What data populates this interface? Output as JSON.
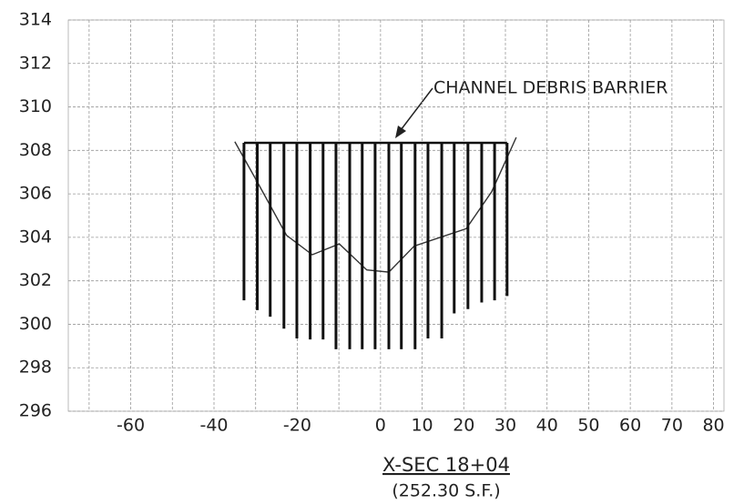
{
  "chart_data": {
    "type": "line",
    "title": "X-SEC 18+04",
    "subtitle": "(252.30 S.F.)",
    "annotation": "CHANNEL DEBRIS BARRIER",
    "xlim": [
      -75,
      82.5
    ],
    "ylim": [
      296,
      314
    ],
    "xticks": [
      -60,
      -40,
      -20,
      0,
      10,
      20,
      30,
      40,
      50,
      60,
      70,
      80
    ],
    "xgrid": [
      -70,
      -60,
      -50,
      -40,
      -30,
      -20,
      -10,
      0,
      10,
      20,
      30,
      40,
      50,
      60,
      70,
      80
    ],
    "yticks": [
      296,
      298,
      300,
      302,
      304,
      306,
      308,
      310,
      312,
      314
    ],
    "grid": true,
    "series": [
      {
        "color": "#333333",
        "x": [
          -35.0,
          -29.6,
          -22.6,
          -16.4,
          -9.9,
          -3.3,
          2.0,
          8.1,
          20.6,
          26.7,
          32.6
        ],
        "values": [
          308.4,
          306.55,
          304.1,
          303.2,
          303.7,
          302.5,
          302.4,
          303.6,
          304.4,
          306.1,
          308.6
        ]
      }
    ],
    "posts": {
      "color": "#111111",
      "top": 308.35,
      "x": [
        -32.8,
        -29.6,
        -26.5,
        -23.2,
        -20.1,
        -16.9,
        -13.8,
        -10.7,
        -7.4,
        -4.4,
        -1.3,
        2.0,
        5.0,
        8.3,
        11.4,
        14.7,
        17.7,
        21.0,
        24.3,
        27.4,
        30.4
      ],
      "bottom": [
        301.1,
        300.65,
        300.35,
        299.8,
        299.35,
        299.3,
        299.3,
        298.85,
        298.85,
        298.85,
        298.85,
        298.85,
        298.85,
        298.85,
        299.35,
        299.35,
        300.5,
        300.7,
        301.0,
        301.1,
        301.3
      ]
    }
  }
}
